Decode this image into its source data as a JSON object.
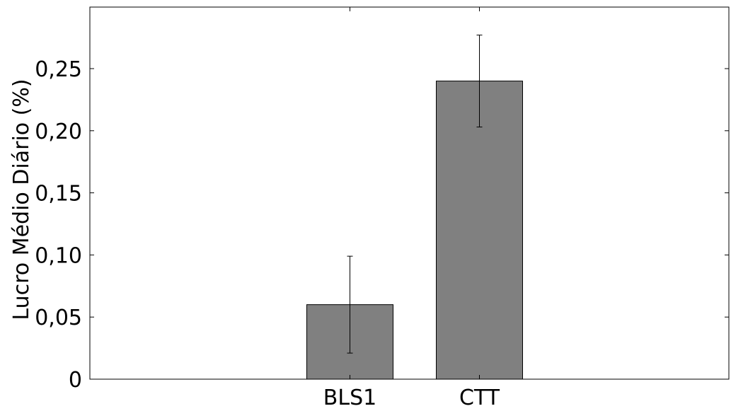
{
  "chart_data": {
    "type": "bar",
    "title": "",
    "xlabel": "",
    "ylabel": "Lucro Médio Diário (%)",
    "categories": [
      "BLS1",
      "CTT"
    ],
    "values": [
      0.06,
      0.24
    ],
    "error_low": [
      0.021,
      0.203
    ],
    "error_high": [
      0.099,
      0.277
    ],
    "ylim": [
      0,
      0.3
    ],
    "yticks": [
      0,
      0.05,
      0.1,
      0.15,
      0.2,
      0.25
    ],
    "ytick_labels": [
      "0",
      "0,05",
      "0,10",
      "0,15",
      "0,20",
      "0,25"
    ],
    "grid": false,
    "bar_color": "#808080",
    "edge_color": "#000000"
  }
}
